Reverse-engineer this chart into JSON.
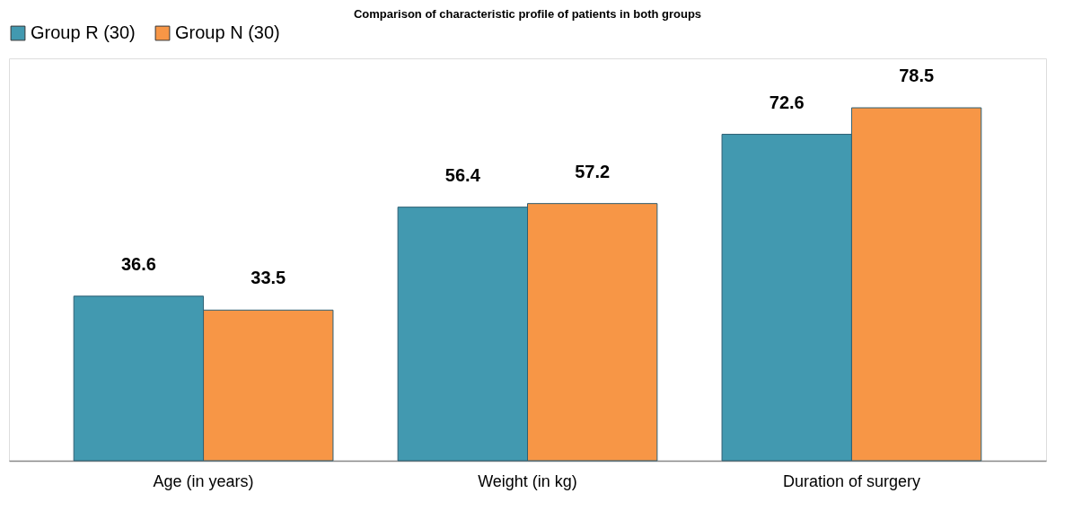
{
  "chart_data": {
    "type": "bar",
    "title": "Comparison of characteristic profile of patients in both groups",
    "categories": [
      "Age (in years)",
      "Weight (in kg)",
      "Duration of surgery"
    ],
    "series": [
      {
        "name": "Group R (30)",
        "color": "#4299b0",
        "values": [
          36.6,
          56.4,
          72.6
        ]
      },
      {
        "name": "Group N (30)",
        "color": "#f79646",
        "values": [
          33.5,
          57.2,
          78.5
        ]
      }
    ],
    "data_labels": true,
    "legend": "top",
    "grid": false
  }
}
